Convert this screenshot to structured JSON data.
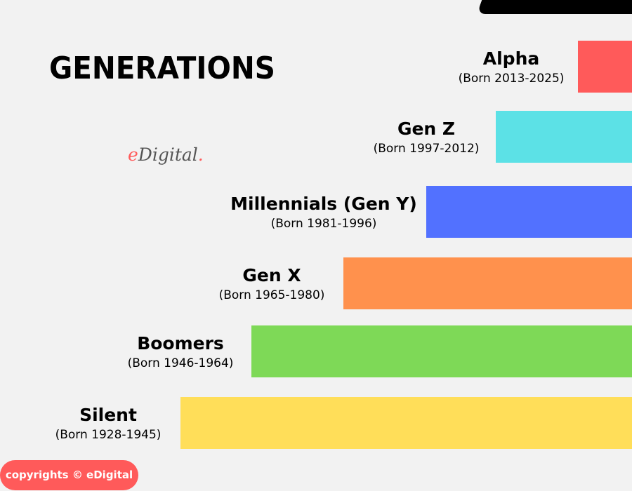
{
  "title": "GENERATIONS",
  "logo": {
    "text": "eDigital",
    "accent_color": "#ff5a5a"
  },
  "generations": [
    {
      "name": "Alpha",
      "born": "(Born 2013-2025)",
      "color": "#ff5a5a"
    },
    {
      "name": "Gen Z",
      "born": "(Born 1997-2012)",
      "color": "#5ce1e6"
    },
    {
      "name": "Millennials (Gen Y)",
      "born": "(Born 1981-1996)",
      "color": "#5271ff"
    },
    {
      "name": "Gen X",
      "born": "(Born 1965-1980)",
      "color": "#ff914d"
    },
    {
      "name": "Boomers",
      "born": "(Born 1946-1964)",
      "color": "#7ed957"
    },
    {
      "name": "Silent",
      "born": "(Born 1928-1945)",
      "color": "#ffde59"
    }
  ],
  "footer": {
    "copyright": "copyrights © eDigital",
    "color": "#ff5a5a"
  }
}
